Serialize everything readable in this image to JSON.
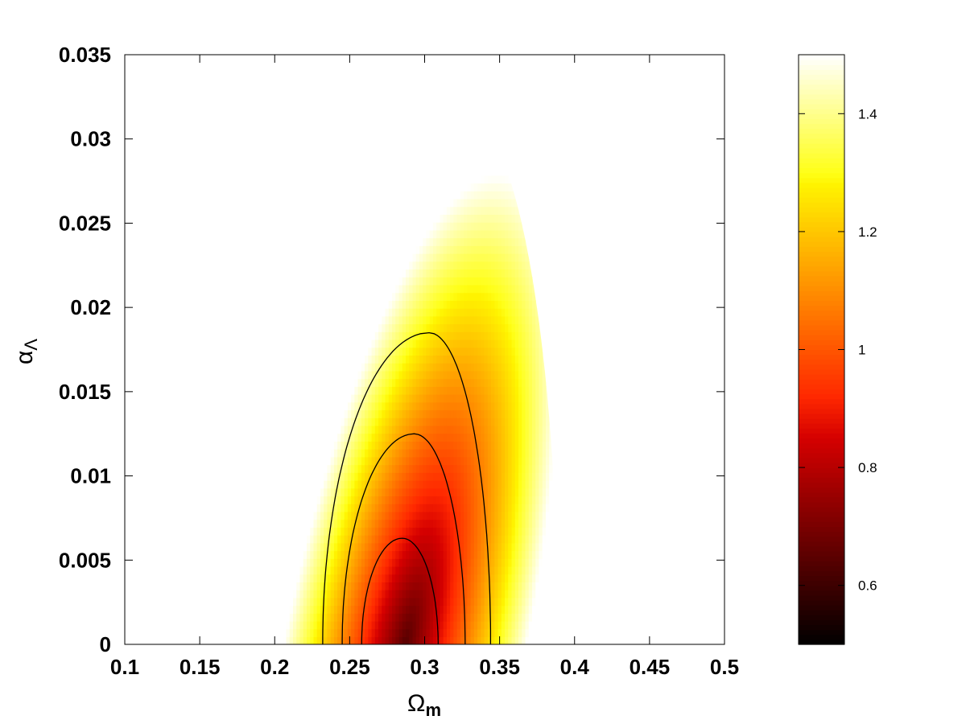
{
  "chart_data": {
    "type": "heatmap",
    "title": "",
    "xlabel": "Ω",
    "xlabel_sub": "m",
    "ylabel": "α",
    "ylabel_sub": "Λ",
    "xlim": [
      0.1,
      0.5
    ],
    "ylim": [
      0,
      0.035
    ],
    "x_ticks": [
      "0.1",
      "0.15",
      "0.2",
      "0.25",
      "0.3",
      "0.35",
      "0.4",
      "0.45",
      "0.5"
    ],
    "y_ticks": [
      "0",
      "0.005",
      "0.01",
      "0.015",
      "0.02",
      "0.025",
      "0.03",
      "0.035"
    ],
    "colorbar": {
      "range": [
        0.5,
        1.5
      ],
      "ticks": [
        "0.6",
        "0.8",
        "1",
        "1.2",
        "1.4"
      ],
      "colormap": "hot"
    },
    "minimum": {
      "x": 0.287,
      "y": 0
    },
    "contours": [
      {
        "level": 1,
        "peak": [
          0.285,
          0.0063
        ],
        "base": [
          0.258,
          0.309
        ]
      },
      {
        "level": 2,
        "peak": [
          0.293,
          0.0125
        ],
        "base": [
          0.245,
          0.327
        ]
      },
      {
        "level": 3,
        "peak": [
          0.303,
          0.0185
        ],
        "base": [
          0.232,
          0.344
        ]
      }
    ],
    "region_boundary": {
      "peak": [
        0.327,
        0.0315
      ],
      "base": [
        0.204,
        0.389
      ]
    },
    "grid": false
  }
}
